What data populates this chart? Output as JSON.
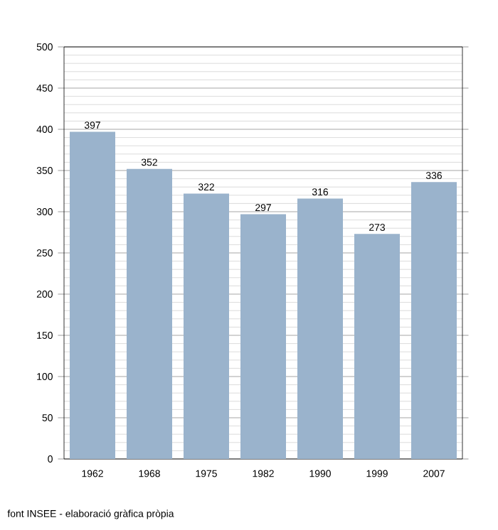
{
  "chart_data": {
    "type": "bar",
    "categories": [
      "1962",
      "1968",
      "1975",
      "1982",
      "1990",
      "1999",
      "2007"
    ],
    "values": [
      397,
      352,
      322,
      297,
      316,
      273,
      336
    ],
    "color": "#9ab3cc",
    "ylim": [
      0,
      500
    ],
    "yticks": [
      0,
      50,
      100,
      150,
      200,
      250,
      300,
      350,
      400,
      450,
      500
    ],
    "grid": true,
    "data_labels": true,
    "annotations": [
      "font INSEE - elaboració gràfica pròpia"
    ]
  }
}
